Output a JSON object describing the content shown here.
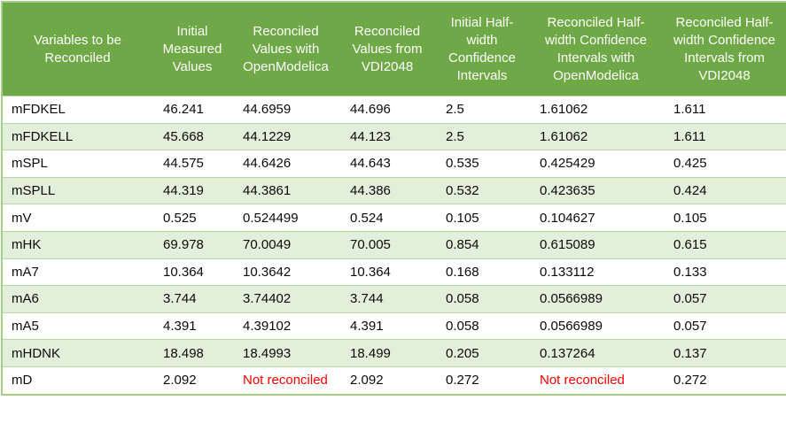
{
  "table": {
    "columns": [
      "Variables to be Reconciled",
      "Initial Measured Values",
      "Reconciled Values with OpenModelica",
      "Reconciled Values from VDI2048",
      "Initial Half-width Confidence Intervals",
      "Reconciled Half-width Confidence Intervals with OpenModelica",
      "Reconciled Half-width Confidence Intervals from VDI2048"
    ],
    "rows": [
      {
        "variable": "mFDKEL",
        "values": [
          "46.241",
          "44.6959",
          "44.696",
          "2.5",
          "1.61062",
          "1.611"
        ]
      },
      {
        "variable": "mFDKELL",
        "values": [
          "45.668",
          "44.1229",
          "44.123",
          "2.5",
          "1.61062",
          "1.611"
        ]
      },
      {
        "variable": "mSPL",
        "values": [
          "44.575",
          "44.6426",
          "44.643",
          "0.535",
          "0.425429",
          "0.425"
        ]
      },
      {
        "variable": "mSPLL",
        "values": [
          "44.319",
          "44.3861",
          "44.386",
          "0.532",
          "0.423635",
          "0.424"
        ]
      },
      {
        "variable": "mV",
        "values": [
          "0.525",
          "0.524499",
          "0.524",
          "0.105",
          "0.104627",
          "0.105"
        ]
      },
      {
        "variable": "mHK",
        "values": [
          "69.978",
          "70.0049",
          "70.005",
          "0.854",
          "0.615089",
          "0.615"
        ]
      },
      {
        "variable": "mA7",
        "values": [
          "10.364",
          "10.3642",
          "10.364",
          "0.168",
          "0.133112",
          "0.133"
        ]
      },
      {
        "variable": "mA6",
        "values": [
          "3.744",
          "3.74402",
          "3.744",
          "0.058",
          "0.0566989",
          "0.057"
        ]
      },
      {
        "variable": "mA5",
        "values": [
          "4.391",
          "4.39102",
          "4.391",
          "0.058",
          "0.0566989",
          "0.057"
        ]
      },
      {
        "variable": "mHDNK",
        "values": [
          "18.498",
          "18.4993",
          "18.499",
          "0.205",
          "0.137264",
          "0.137"
        ]
      },
      {
        "variable": "mD",
        "values": [
          "2.092",
          "Not reconciled",
          "2.092",
          "0.272",
          "Not reconciled",
          "0.272"
        ]
      }
    ],
    "not_reconciled_text": "Not reconciled",
    "colors": {
      "header_bg": "#6fa846",
      "header_text": "#ffffff",
      "banded_row_bg": "#e2efda",
      "grid_border": "#a6ce8b",
      "row_separator": "#b5d8a0",
      "not_reconciled_text_color": "#ff0000",
      "body_text": "#000000"
    }
  }
}
